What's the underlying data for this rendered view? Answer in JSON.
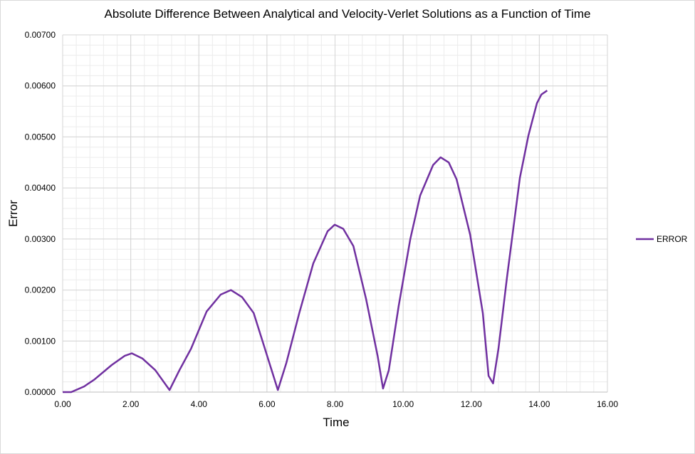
{
  "chart_data": {
    "type": "line",
    "title": "Absolute Difference Between Analytical and Velocity-Verlet Solutions as a Function of Time",
    "xlabel": "Time",
    "ylabel": "Error",
    "xlim": [
      0,
      16
    ],
    "ylim": [
      0,
      0.007
    ],
    "x_ticks": [
      "0.00",
      "2.00",
      "4.00",
      "6.00",
      "8.00",
      "10.00",
      "12.00",
      "14.00",
      "16.00"
    ],
    "y_ticks": [
      "0.00000",
      "0.00100",
      "0.00200",
      "0.00300",
      "0.00400",
      "0.00500",
      "0.00600",
      "0.00700"
    ],
    "grid": true,
    "legend_position": "right",
    "series": [
      {
        "name": "ERROR",
        "color": "#7030a0",
        "x": [
          0,
          0.25,
          0.63,
          0.94,
          1.44,
          1.82,
          2.03,
          2.34,
          2.72,
          3.14,
          3.43,
          3.77,
          4.23,
          4.64,
          4.94,
          5.27,
          5.61,
          5.94,
          6.32,
          6.57,
          6.95,
          7.36,
          7.78,
          7.99,
          8.24,
          8.54,
          8.91,
          9.25,
          9.41,
          9.58,
          9.87,
          10.21,
          10.5,
          10.88,
          11.1,
          11.34,
          11.57,
          11.97,
          12.34,
          12.51,
          12.64,
          12.8,
          13.05,
          13.43,
          13.68,
          13.93,
          14.06,
          14.23
        ],
        "y": [
          0,
          0,
          0.00011,
          0.00025,
          0.00053,
          0.00071,
          0.00076,
          0.00066,
          0.00043,
          4e-05,
          0.00043,
          0.00085,
          0.00158,
          0.00191,
          0.002,
          0.00186,
          0.00155,
          0.00085,
          4e-05,
          0.00057,
          0.00155,
          0.00252,
          0.00315,
          0.00328,
          0.0032,
          0.00286,
          0.00183,
          0.00071,
          7e-05,
          0.00043,
          0.00169,
          0.003,
          0.00385,
          0.00445,
          0.0046,
          0.0045,
          0.00417,
          0.00308,
          0.00155,
          0.00032,
          0.00017,
          0.00085,
          0.00225,
          0.0042,
          0.00503,
          0.00566,
          0.00583,
          0.00591
        ]
      }
    ]
  }
}
